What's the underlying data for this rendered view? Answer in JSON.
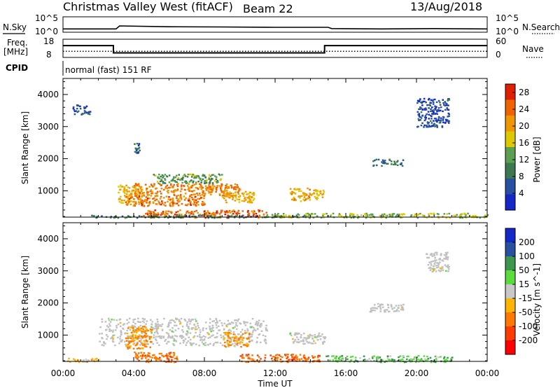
{
  "header": {
    "station": "Christmas Valley West (fitACF)",
    "beam": "Beam 22",
    "date": "13/Aug/2018"
  },
  "strip_labels": {
    "nsky": "N.Sky",
    "nsearch": "N.Search",
    "freq_line1": "Freq.",
    "freq_line2": "[MHz]",
    "nave": "Nave",
    "cpid": "CPID",
    "cpid_value": "normal (fast) 151 RF",
    "noise_ticks_left": [
      "10^5",
      "10^0"
    ],
    "noise_ticks_right": [
      "10^5",
      "10^0"
    ],
    "freq_ticks": [
      "18",
      "8"
    ],
    "nave_ticks": [
      "60",
      "0"
    ]
  },
  "colors": {
    "power": [
      "#1428c8",
      "#2850a0",
      "#3c7850",
      "#5aa050",
      "#e0c800",
      "#f09600",
      "#f06400",
      "#e01e00"
    ],
    "velocity": [
      "#ff0000",
      "#ff3c00",
      "#ff7800",
      "#ffb400",
      "#c8c8c8",
      "#5adc3c",
      "#3c9650",
      "#2850a0",
      "#1428c8"
    ],
    "ground_scatter": "#c0c0c0"
  },
  "chart_data": [
    {
      "type": "line",
      "title": "N.Sky / N.Search",
      "x_range_hours": [
        0,
        24
      ],
      "ylim": [
        "10^0",
        "10^5"
      ],
      "x": [
        0,
        3,
        3.2,
        6,
        9,
        12,
        15,
        15.2,
        18,
        21,
        24
      ],
      "series": [
        {
          "name": "N.Sky",
          "values": [
            12,
            12,
            110,
            60,
            50,
            40,
            40,
            15,
            12,
            15,
            12
          ]
        }
      ]
    },
    {
      "type": "line",
      "title": "Freq. [MHz] / Nave",
      "x_range_hours": [
        0,
        24
      ],
      "series": [
        {
          "name": "Freq.",
          "unit": "MHz",
          "x": [
            0,
            2.85,
            2.85,
            14.8,
            14.8,
            24
          ],
          "values": [
            14.5,
            14.5,
            10.5,
            10.5,
            14.5,
            14.5
          ]
        },
        {
          "name": "Nave",
          "x": [
            0,
            24
          ],
          "values": [
            20,
            20
          ]
        }
      ],
      "freq_range": [
        8,
        18
      ],
      "nave_range": [
        0,
        60
      ]
    },
    {
      "type": "heatmap",
      "parameter": "Power",
      "xlabel": "",
      "ylabel": "Slant Range [km]",
      "x_ticks": [
        "00:00",
        "04:00",
        "08:00",
        "12:00",
        "16:00",
        "20:00",
        "00:00"
      ],
      "y_ticks": [
        1000,
        2000,
        3000,
        4000
      ],
      "ylim": [
        180,
        4500
      ],
      "colorbar_label": "Power [dB]",
      "colorbar_ticks": [
        4,
        8,
        12,
        16,
        20,
        24,
        28
      ],
      "colorbar_range": [
        0,
        30
      ],
      "regions": [
        {
          "t": [
            3.1,
            4.5
          ],
          "r": [
            600,
            1200
          ],
          "value": 20
        },
        {
          "t": [
            4.0,
            10.0
          ],
          "r": [
            850,
            1250
          ],
          "value": 24
        },
        {
          "t": [
            3.5,
            8.0
          ],
          "r": [
            550,
            850
          ],
          "value": 25
        },
        {
          "t": [
            9.0,
            10.8
          ],
          "r": [
            650,
            1000
          ],
          "value": 20
        },
        {
          "t": [
            5.0,
            9.0
          ],
          "r": [
            1250,
            1550
          ],
          "value": 13
        },
        {
          "t": [
            4.5,
            11.5
          ],
          "r": [
            180,
            420
          ],
          "value": 26
        },
        {
          "t": [
            1.5,
            14.0
          ],
          "r": [
            180,
            260
          ],
          "value": 10
        },
        {
          "t": [
            11.5,
            24
          ],
          "r": [
            180,
            320
          ],
          "value": 16
        },
        {
          "t": [
            12.8,
            14.0
          ],
          "r": [
            700,
            1100
          ],
          "value": 21
        },
        {
          "t": [
            14.0,
            14.8
          ],
          "r": [
            750,
            1050
          ],
          "value": 20
        },
        {
          "t": [
            17.5,
            19.2
          ],
          "r": [
            1800,
            2000
          ],
          "value": 8
        },
        {
          "t": [
            0.5,
            1.5
          ],
          "r": [
            3400,
            3700
          ],
          "value": 6
        },
        {
          "t": [
            20.0,
            21.8
          ],
          "r": [
            3000,
            3900
          ],
          "value": 5
        },
        {
          "t": [
            4.0,
            4.3
          ],
          "r": [
            2200,
            2500
          ],
          "value": 7
        }
      ]
    },
    {
      "type": "heatmap",
      "parameter": "Velocity",
      "xlabel": "Time UT",
      "ylabel": "Slant Range [km]",
      "x_ticks": [
        "00:00",
        "04:00",
        "08:00",
        "12:00",
        "16:00",
        "20:00",
        "00:00"
      ],
      "y_ticks": [
        1000,
        2000,
        3000,
        4000
      ],
      "ylim": [
        180,
        4500
      ],
      "colorbar_label": "Velocity [m s^-1]",
      "colorbar_ticks": [
        200,
        100,
        50,
        15,
        -15,
        -50,
        -100,
        -200
      ],
      "colorbar_range": [
        -250,
        250
      ],
      "regions": [
        {
          "t": [
            2.0,
            11.5
          ],
          "r": [
            700,
            1550
          ],
          "value": 0,
          "ground_scatter": true
        },
        {
          "t": [
            3.5,
            5.0
          ],
          "r": [
            600,
            1300
          ],
          "value": -60
        },
        {
          "t": [
            9.0,
            10.5
          ],
          "r": [
            650,
            1100
          ],
          "value": -40
        },
        {
          "t": [
            4.0,
            6.5
          ],
          "r": [
            180,
            500
          ],
          "value": -80
        },
        {
          "t": [
            10.0,
            14.5
          ],
          "r": [
            180,
            420
          ],
          "value": -90
        },
        {
          "t": [
            12.8,
            14.8
          ],
          "r": [
            750,
            1100
          ],
          "value": 0,
          "ground_scatter": true
        },
        {
          "t": [
            14.8,
            22.0
          ],
          "r": [
            180,
            380
          ],
          "value": 40
        },
        {
          "t": [
            17.3,
            19.3
          ],
          "r": [
            1750,
            2000
          ],
          "value": 0,
          "ground_scatter": true
        },
        {
          "t": [
            0.2,
            2.0
          ],
          "r": [
            180,
            300
          ],
          "value": -30
        },
        {
          "t": [
            20.5,
            21.8
          ],
          "r": [
            3000,
            3600
          ],
          "value": 0,
          "ground_scatter": true
        }
      ]
    }
  ]
}
